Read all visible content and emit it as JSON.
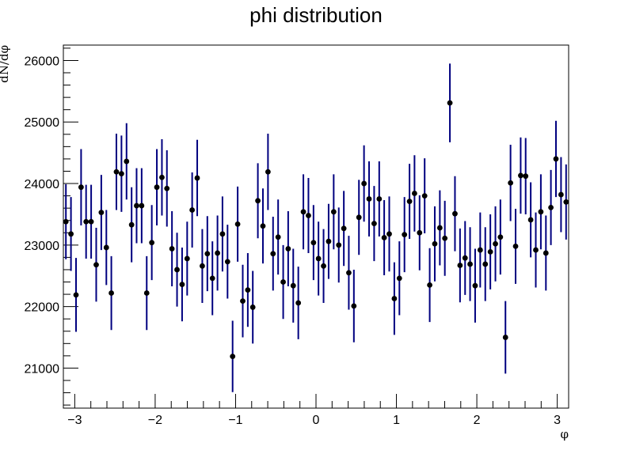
{
  "chart_data": {
    "type": "scatter",
    "title": "phi distribution",
    "xlabel": "φ",
    "ylabel": "dN/dφ",
    "xlim": [
      -3.1416,
      3.1416
    ],
    "ylim": [
      20350,
      26250
    ],
    "x_ticks": [
      -3,
      -2,
      -1,
      0,
      1,
      2,
      3
    ],
    "x_tick_labels": [
      "−3",
      "−2",
      "−1",
      "0",
      "1",
      "2",
      "3"
    ],
    "y_ticks": [
      21000,
      22000,
      23000,
      24000,
      25000,
      26000
    ],
    "y_tick_labels": [
      "21000",
      "22000",
      "23000",
      "24000",
      "25000",
      "26000"
    ],
    "grid": false,
    "marker_color": "#000000",
    "errorbar_color": "#00007f",
    "series": [
      {
        "x": [
          -3.11,
          -3.047,
          -2.984,
          -2.921,
          -2.859,
          -2.796,
          -2.733,
          -2.67,
          -2.607,
          -2.545,
          -2.482,
          -2.419,
          -2.356,
          -2.293,
          -2.231,
          -2.168,
          -2.105,
          -2.042,
          -1.979,
          -1.916,
          -1.854,
          -1.791,
          -1.728,
          -1.665,
          -1.602,
          -1.54,
          -1.477,
          -1.414,
          -1.351,
          -1.288,
          -1.225,
          -1.163,
          -1.1,
          -1.037,
          -0.974,
          -0.911,
          -0.848,
          -0.786,
          -0.723,
          -0.66,
          -0.597,
          -0.534,
          -0.471,
          -0.408,
          -0.346,
          -0.283,
          -0.22,
          -0.157,
          -0.094,
          -0.031,
          0.031,
          0.094,
          0.157,
          0.22,
          0.283,
          0.346,
          0.408,
          0.471,
          0.534,
          0.597,
          0.66,
          0.723,
          0.786,
          0.848,
          0.911,
          0.974,
          1.037,
          1.1,
          1.163,
          1.225,
          1.288,
          1.351,
          1.414,
          1.477,
          1.54,
          1.602,
          1.665,
          1.728,
          1.791,
          1.854,
          1.916,
          1.979,
          2.042,
          2.105,
          2.168,
          2.231,
          2.293,
          2.356,
          2.419,
          2.482,
          2.545,
          2.607,
          2.67,
          2.733,
          2.796,
          2.859,
          2.921,
          2.984,
          3.047,
          3.11
        ],
        "y": [
          23380,
          23180,
          22190,
          23940,
          23380,
          23380,
          22680,
          23530,
          22960,
          22220,
          24190,
          24160,
          24360,
          23330,
          23640,
          23640,
          22220,
          23040,
          23940,
          24100,
          23920,
          22940,
          22600,
          22360,
          22780,
          23570,
          24090,
          22660,
          22860,
          22460,
          22870,
          23180,
          22730,
          21190,
          23340,
          22090,
          22270,
          21990,
          23720,
          23310,
          24190,
          22860,
          23130,
          22400,
          22940,
          22340,
          22060,
          23540,
          23480,
          23040,
          22780,
          22660,
          23060,
          23540,
          23000,
          23270,
          22550,
          22010,
          23450,
          24000,
          23750,
          23350,
          23750,
          23120,
          23180,
          22130,
          22460,
          23170,
          23710,
          23840,
          23200,
          23800,
          22350,
          23020,
          23280,
          23110,
          25310,
          23510,
          22670,
          22790,
          22690,
          22340,
          22920,
          22690,
          22890,
          23020,
          23130,
          21500,
          24010,
          22980,
          24130,
          24120,
          23410,
          22920,
          23540,
          22870,
          23610,
          24400,
          23820,
          23700
        ],
        "err": [
          610,
          600,
          600,
          620,
          600,
          600,
          600,
          610,
          610,
          600,
          620,
          620,
          620,
          610,
          610,
          610,
          600,
          610,
          620,
          620,
          620,
          610,
          600,
          600,
          600,
          610,
          620,
          600,
          610,
          600,
          610,
          610,
          600,
          580,
          610,
          590,
          600,
          590,
          610,
          610,
          620,
          600,
          610,
          600,
          610,
          600,
          590,
          610,
          610,
          610,
          600,
          600,
          610,
          610,
          610,
          610,
          600,
          590,
          610,
          620,
          610,
          610,
          610,
          610,
          610,
          590,
          600,
          610,
          610,
          620,
          610,
          610,
          600,
          610,
          610,
          610,
          640,
          610,
          600,
          600,
          600,
          600,
          610,
          600,
          610,
          610,
          610,
          590,
          620,
          610,
          620,
          620,
          610,
          610,
          610,
          610,
          610,
          620,
          610,
          610
        ]
      }
    ]
  }
}
